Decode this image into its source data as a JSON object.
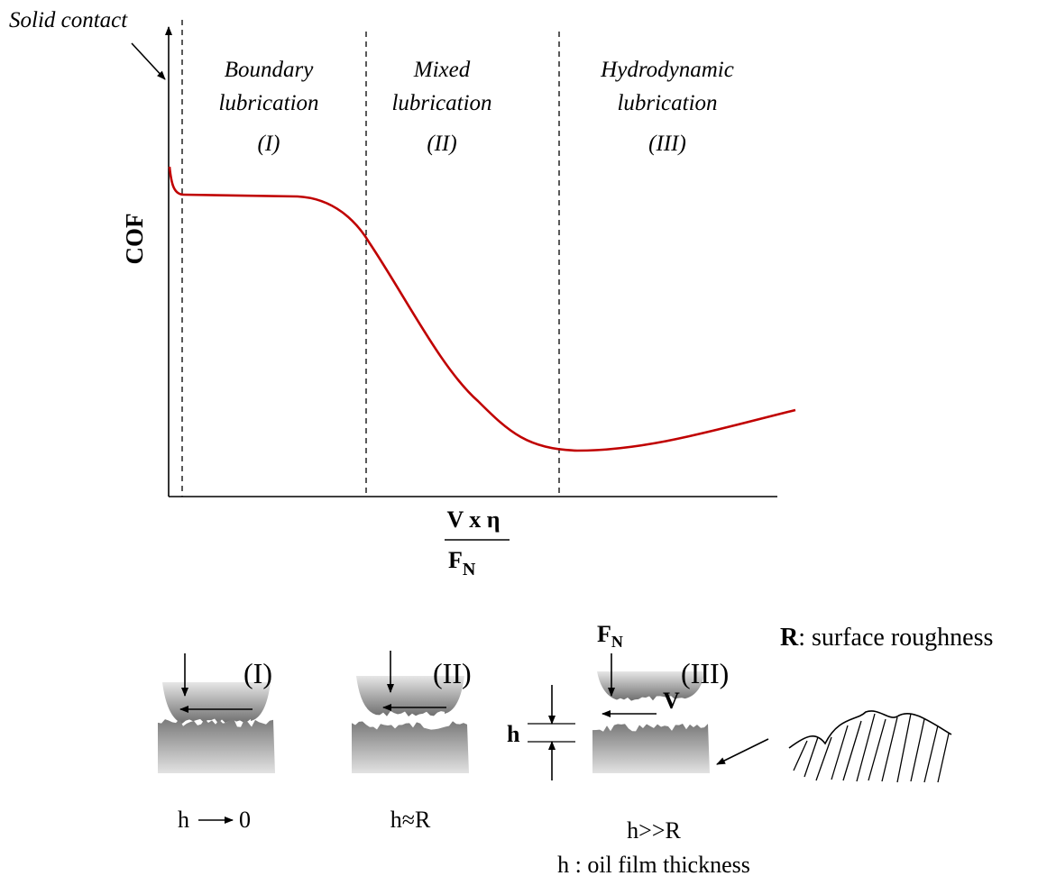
{
  "chart": {
    "annotation": "Solid contact",
    "regions": [
      {
        "name": "Boundary",
        "kind": "lubrication",
        "numeral": "(I)"
      },
      {
        "name": "Mixed",
        "kind": "lubrication",
        "numeral": "(II)"
      },
      {
        "name": "Hydrodynamic",
        "kind": "lubrication",
        "numeral": "(III)"
      }
    ],
    "y_label": "COF",
    "x_label": {
      "numerator": "V x η",
      "denominator": "F",
      "denominator_sub": "N"
    }
  },
  "panels": {
    "items": [
      {
        "numeral": "(I)",
        "caption": "h",
        "caption_end": "0"
      },
      {
        "numeral": "(II)",
        "caption": "h≈R"
      },
      {
        "numeral": "(III)",
        "caption": "h>>R"
      }
    ],
    "force": "F",
    "force_sub": "N",
    "velocity": "V",
    "gap": "h",
    "roughness_symbol": "R",
    "roughness_text": ": surface roughness",
    "gap_note": "h : oil film thickness"
  }
}
